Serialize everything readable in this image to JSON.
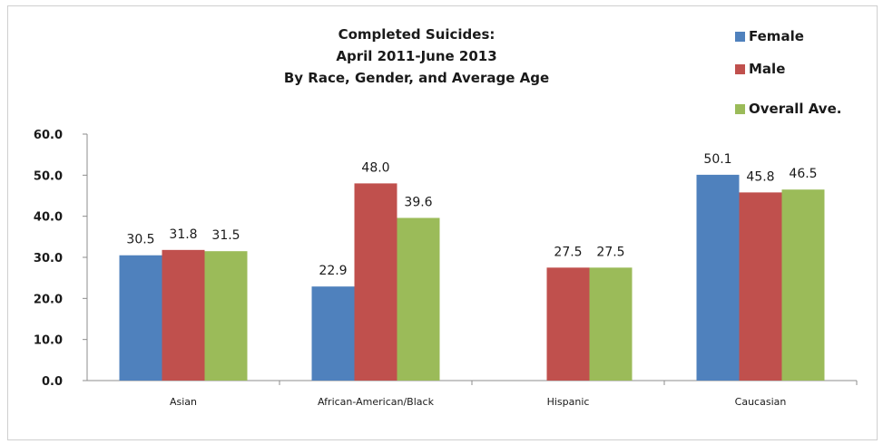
{
  "chart_data": {
    "type": "bar",
    "title_lines": [
      "Completed Suicides:",
      "April 2011-June 2013",
      "By Race, Gender, and Average Age"
    ],
    "categories": [
      "Asian",
      "African-American/Black",
      "Hispanic",
      "Caucasian"
    ],
    "series": [
      {
        "name": "Female",
        "color": "#4f81bd",
        "values": [
          30.5,
          22.9,
          null,
          50.1
        ]
      },
      {
        "name": "Male",
        "color": "#c0504d",
        "values": [
          31.8,
          48.0,
          27.5,
          45.8
        ]
      },
      {
        "name": "Overall Ave.",
        "color": "#9bbb59",
        "values": [
          31.5,
          39.6,
          27.5,
          46.5
        ]
      }
    ],
    "ylim": [
      0,
      60
    ],
    "yticks": [
      "0.0",
      "10.0",
      "20.0",
      "30.0",
      "40.0",
      "50.0",
      "60.0"
    ],
    "xlabel": "",
    "ylabel": "",
    "grid": false,
    "legend_position": "top-right"
  }
}
